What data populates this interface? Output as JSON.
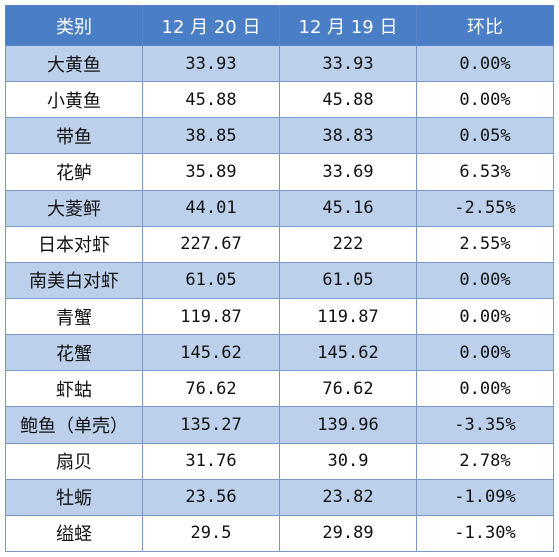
{
  "table": {
    "headers": [
      "类别",
      "12 月 20 日",
      "12 月 19 日",
      "环比"
    ],
    "rows": [
      {
        "name": "大黄鱼",
        "dec20": "33.93",
        "dec19": "33.93",
        "change": "0.00%"
      },
      {
        "name": "小黄鱼",
        "dec20": "45.88",
        "dec19": "45.88",
        "change": "0.00%"
      },
      {
        "name": "带鱼",
        "dec20": "38.85",
        "dec19": "38.83",
        "change": "0.05%"
      },
      {
        "name": "花鲈",
        "dec20": "35.89",
        "dec19": "33.69",
        "change": "6.53%"
      },
      {
        "name": "大菱鲆",
        "dec20": "44.01",
        "dec19": "45.16",
        "change": "-2.55%"
      },
      {
        "name": "日本对虾",
        "dec20": "227.67",
        "dec19": "222",
        "change": "2.55%"
      },
      {
        "name": "南美白对虾",
        "dec20": "61.05",
        "dec19": "61.05",
        "change": "0.00%"
      },
      {
        "name": "青蟹",
        "dec20": "119.87",
        "dec19": "119.87",
        "change": "0.00%"
      },
      {
        "name": "花蟹",
        "dec20": "145.62",
        "dec19": "145.62",
        "change": "0.00%"
      },
      {
        "name": "虾蛄",
        "dec20": "76.62",
        "dec19": "76.62",
        "change": "0.00%"
      },
      {
        "name": "鲍鱼（单壳）",
        "dec20": "135.27",
        "dec19": "139.96",
        "change": "-3.35%"
      },
      {
        "name": "扇贝",
        "dec20": "31.76",
        "dec19": "30.9",
        "change": "2.78%"
      },
      {
        "name": "牡蛎",
        "dec20": "23.56",
        "dec19": "23.82",
        "change": "-1.09%"
      },
      {
        "name": "缢蛏",
        "dec20": "29.5",
        "dec19": "29.89",
        "change": "-1.30%"
      }
    ]
  },
  "colors": {
    "header_bg": "#4a7ec6",
    "stripe_bg": "#bcd0ec",
    "border": "#7d97c4"
  }
}
